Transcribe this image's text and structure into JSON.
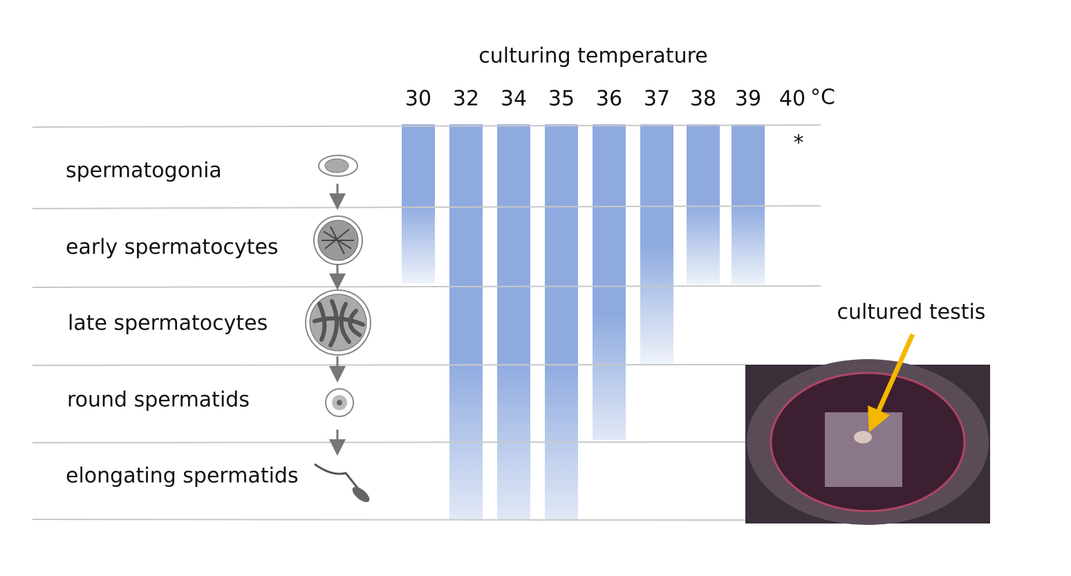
{
  "title": "culturing temperature",
  "temperatures": [
    "30",
    "32",
    "34",
    "35",
    "36",
    "37",
    "38",
    "39",
    "40"
  ],
  "unit": "°C",
  "note": "*",
  "stages": [
    "spermatogonia",
    "early spermatocytes",
    "late spermatocytes",
    "round spermatids",
    "elongating spermatids"
  ],
  "photo_label": "cultured testis"
}
